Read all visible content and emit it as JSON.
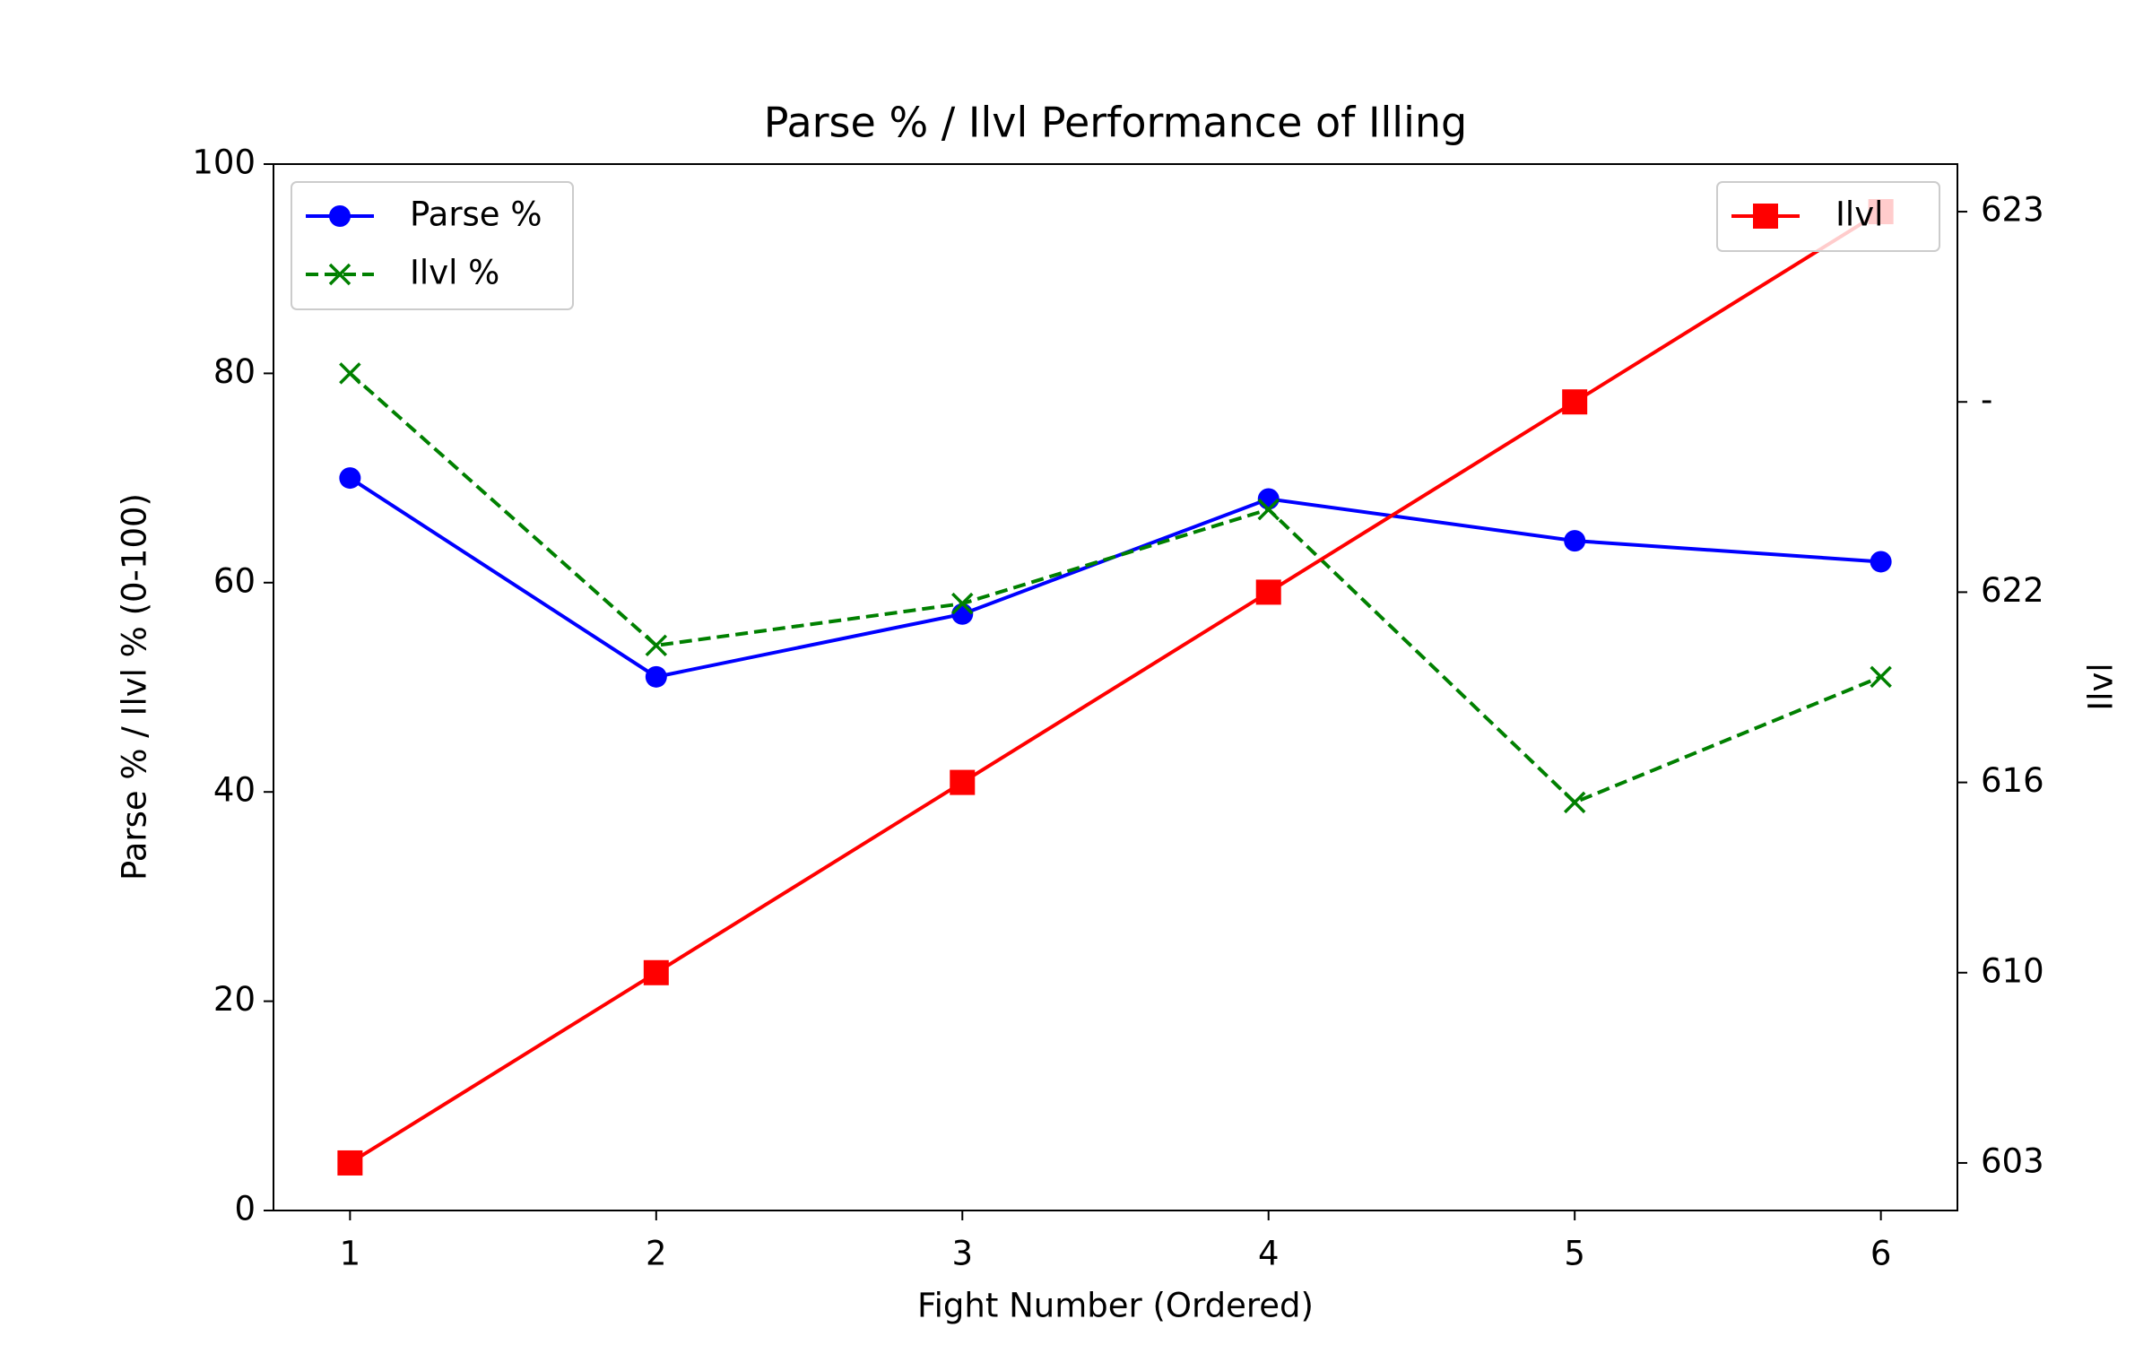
{
  "chart_data": {
    "type": "line",
    "title": "Parse % / Ilvl Performance of Illing",
    "x_label": "Fight Number (Ordered)",
    "y_label": "Parse % / Ilvl % (0-100)",
    "y_label_color": "#0000ff",
    "y2_label": "Ilvl",
    "y2_label_color": "#ff0000",
    "x": [
      1,
      2,
      3,
      4,
      5,
      6
    ],
    "xlim": [
      0.75,
      6.25
    ],
    "xticks": [
      1,
      2,
      3,
      4,
      5,
      6
    ],
    "ylim": [
      0,
      100
    ],
    "yticks": [
      0,
      20,
      40,
      60,
      80,
      100
    ],
    "y2categories": [
      603,
      610,
      616,
      622,
      "-",
      623
    ],
    "series": [
      {
        "name": "Parse %",
        "color": "#0000ff",
        "marker": "circle",
        "linestyle": "solid",
        "values": [
          70,
          51,
          57,
          68,
          64,
          62
        ]
      },
      {
        "name": "Ilvl %",
        "color": "#008000",
        "marker": "x",
        "linestyle": "dashed",
        "values": [
          80,
          54,
          58,
          67,
          39,
          51
        ]
      },
      {
        "name": "Ilvl",
        "color": "#ff0000",
        "marker": "square",
        "linestyle": "solid",
        "axis": "y2",
        "values": [
          603,
          610,
          616,
          622,
          "-",
          623
        ]
      }
    ],
    "legend": "upper left",
    "y2_legend": "upper right"
  }
}
